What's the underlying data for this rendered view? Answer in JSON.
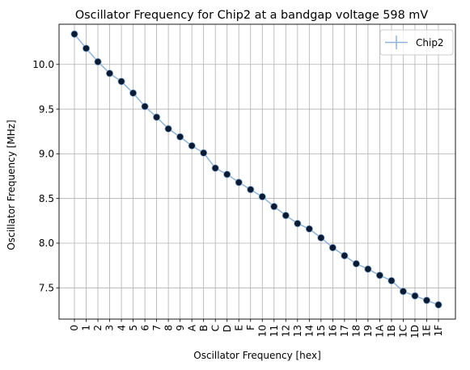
{
  "chart_data": {
    "type": "line",
    "title": "Oscillator Frequency for Chip2 at a bandgap voltage 598 mV",
    "xlabel": "Oscillator Frequency [hex]",
    "ylabel": "Oscillator Frequency [MHz]",
    "categories": [
      "0",
      "1",
      "2",
      "3",
      "4",
      "5",
      "6",
      "7",
      "8",
      "9",
      "A",
      "B",
      "C",
      "D",
      "E",
      "F",
      "10",
      "11",
      "12",
      "13",
      "14",
      "15",
      "16",
      "17",
      "18",
      "19",
      "1A",
      "1B",
      "1C",
      "1D",
      "1E",
      "1F"
    ],
    "ylim": [
      7.15,
      10.45
    ],
    "yticks": [
      7.5,
      8.0,
      8.5,
      9.0,
      9.5,
      10.0
    ],
    "ytick_labels": [
      "7.5",
      "8.0",
      "8.5",
      "9.0",
      "9.5",
      "10.0"
    ],
    "grid": true,
    "legend_position": "top-right",
    "series": [
      {
        "name": "Chip2",
        "color": "#8fb3d9",
        "marker_color": "#0b1b33",
        "values": [
          10.34,
          10.18,
          10.03,
          9.9,
          9.81,
          9.68,
          9.53,
          9.41,
          9.28,
          9.19,
          9.09,
          9.01,
          8.84,
          8.77,
          8.68,
          8.6,
          8.52,
          8.41,
          8.31,
          8.22,
          8.16,
          8.06,
          7.95,
          7.86,
          7.77,
          7.71,
          7.64,
          7.58,
          7.46,
          7.41,
          7.36,
          7.31
        ]
      }
    ]
  }
}
